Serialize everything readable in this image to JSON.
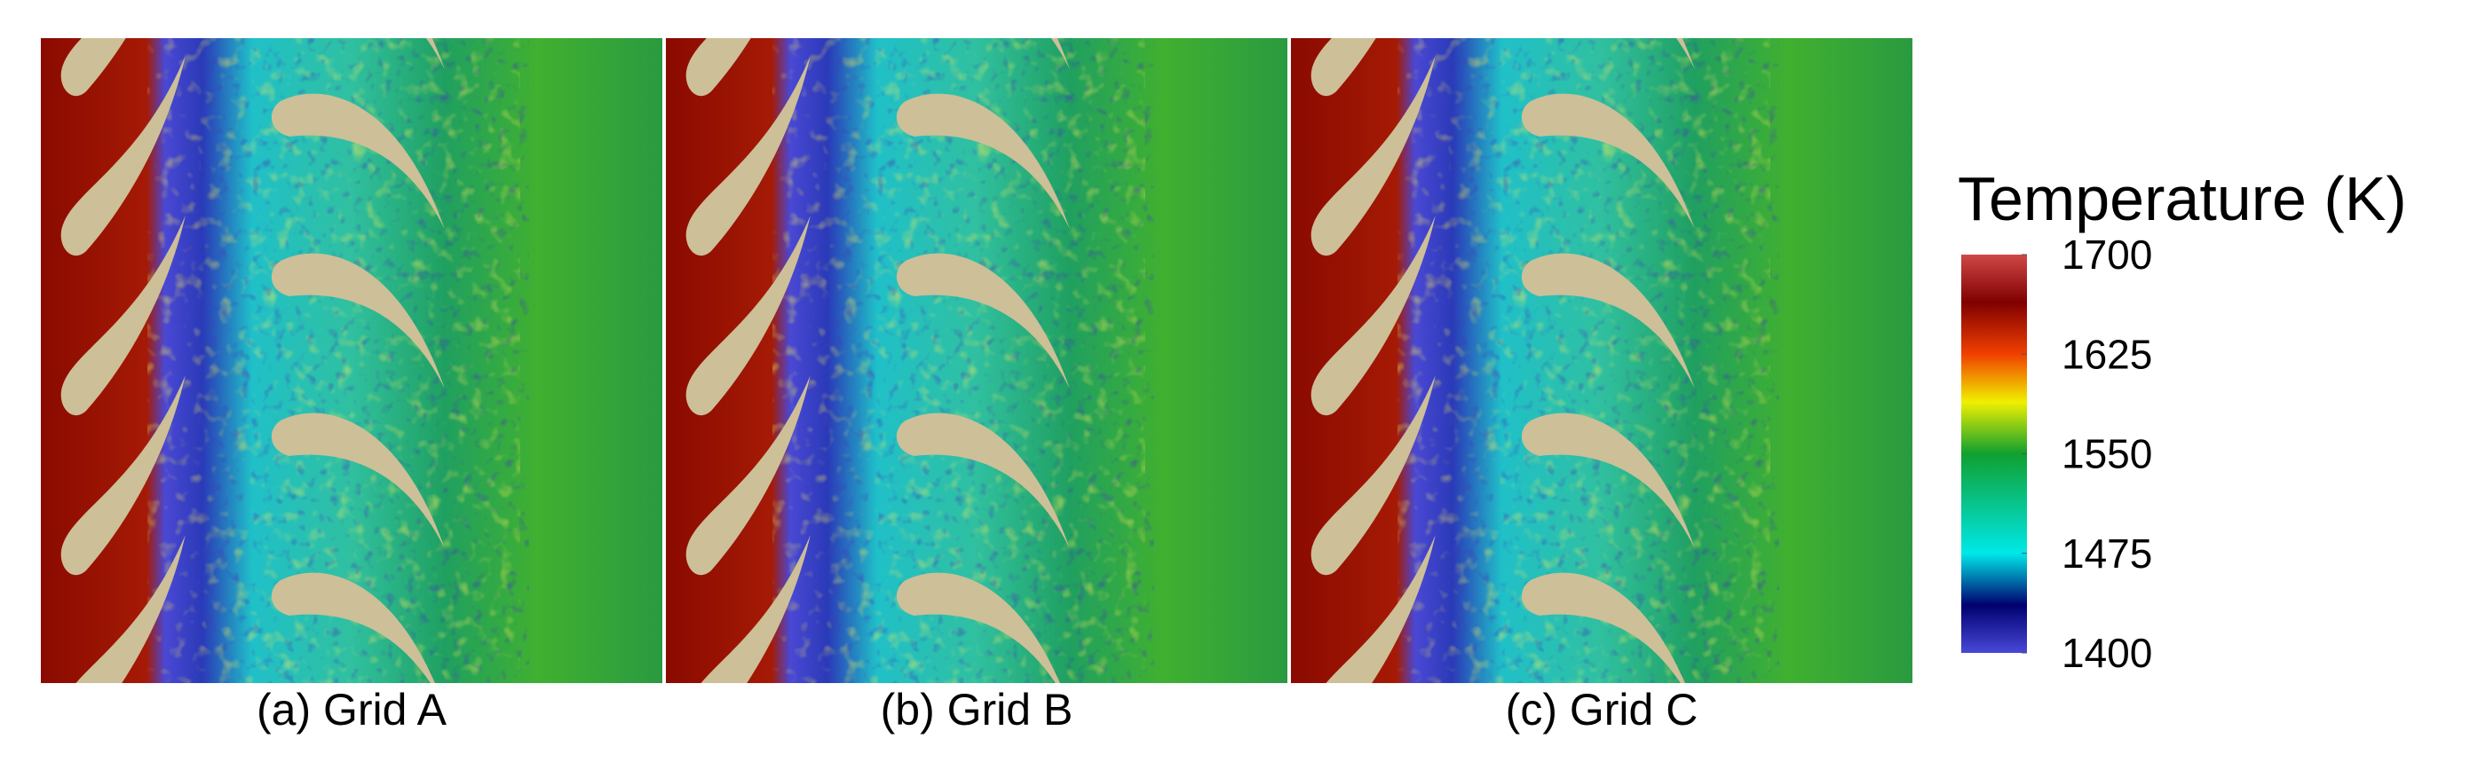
{
  "panels": [
    {
      "caption": "(a) Grid A"
    },
    {
      "caption": "(b) Grid B"
    },
    {
      "caption": "(c) Grid C"
    }
  ],
  "colorbar": {
    "title": "Temperature (K)",
    "lim": [
      1400,
      1700
    ],
    "ticks": [
      1400,
      1475,
      1550,
      1625,
      1700
    ]
  }
}
